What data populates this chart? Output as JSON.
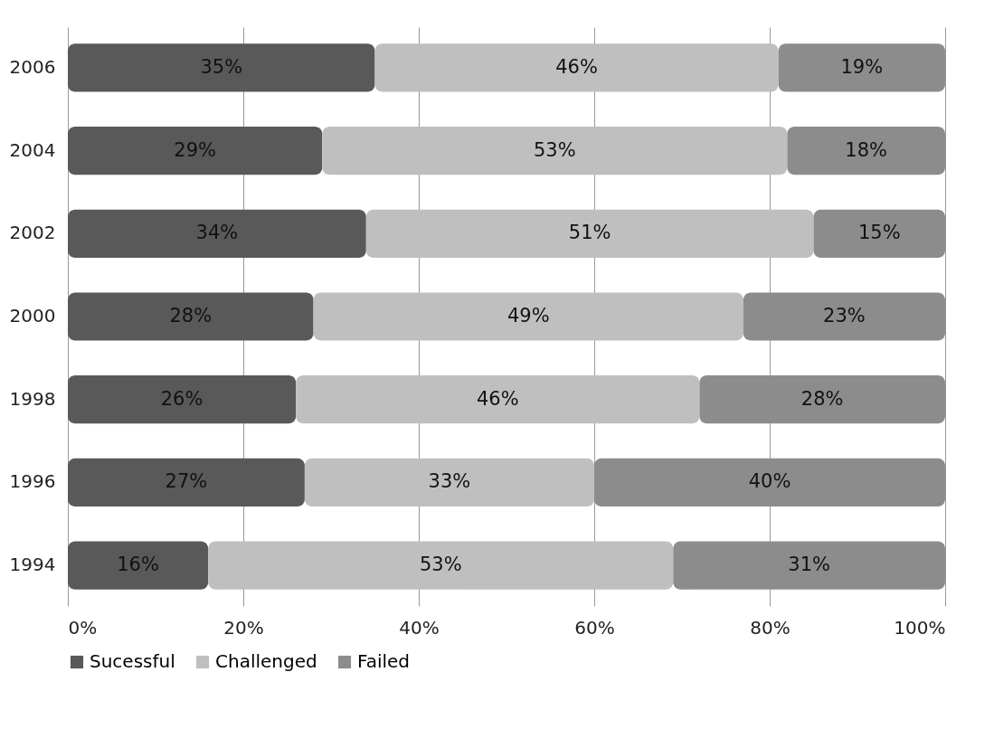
{
  "chart_data": {
    "type": "bar",
    "orientation": "horizontal",
    "stacked": true,
    "categories": [
      "2006",
      "2004",
      "2002",
      "2000",
      "1998",
      "1996",
      "1994"
    ],
    "series": [
      {
        "name": "Sucessful",
        "color": "#595959",
        "values": [
          35,
          29,
          34,
          28,
          26,
          27,
          16
        ],
        "value_labels": [
          "35%",
          "29%",
          "34%",
          "28%",
          "26%",
          "27%",
          "16%"
        ]
      },
      {
        "name": "Challenged",
        "color": "#bfbfbf",
        "values": [
          46,
          53,
          51,
          49,
          46,
          33,
          53
        ],
        "value_labels": [
          "46%",
          "53%",
          "51%",
          "49%",
          "46%",
          "33%",
          "53%"
        ]
      },
      {
        "name": "Failed",
        "color": "#8c8c8c",
        "values": [
          19,
          18,
          15,
          23,
          28,
          40,
          31
        ],
        "value_labels": [
          "19%",
          "18%",
          "15%",
          "23%",
          "28%",
          "40%",
          "31%"
        ]
      }
    ],
    "xlim": [
      0,
      100
    ],
    "xticks": [
      {
        "value": 0,
        "label": "0%"
      },
      {
        "value": 20,
        "label": "20%"
      },
      {
        "value": 40,
        "label": "40%"
      },
      {
        "value": 60,
        "label": "60%"
      },
      {
        "value": 80,
        "label": "80%"
      },
      {
        "value": 100,
        "label": "100%"
      }
    ],
    "grid": "x",
    "legend": "bottom"
  }
}
